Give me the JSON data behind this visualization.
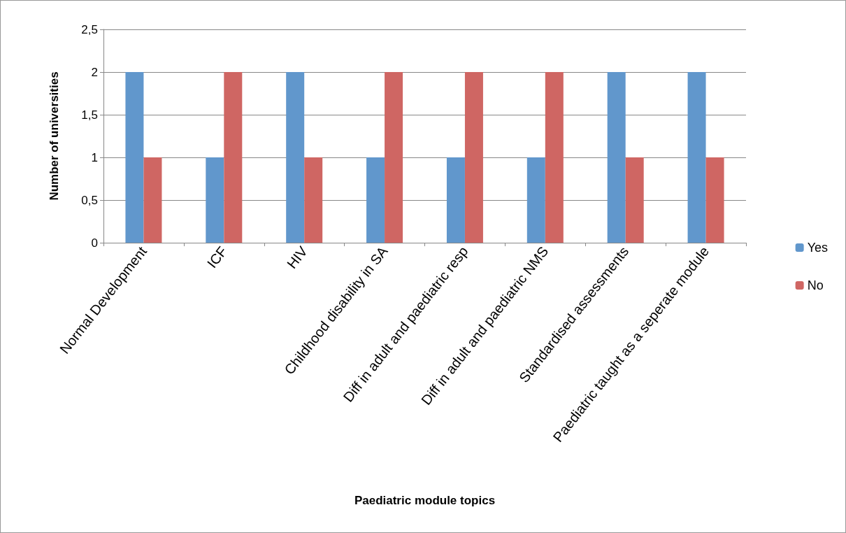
{
  "chart_data": {
    "type": "bar",
    "xlabel": "Paediatric module topics",
    "ylabel": "Number of universities",
    "categories": [
      "Normal Development",
      "ICF",
      "HIV",
      "Childhood disability in SA",
      "Diff in adult and paediatric resp",
      "Diff in adult and paediatric NMS",
      "Standardised assessments",
      "Paediatric taught as a seperate module"
    ],
    "series": [
      {
        "name": "Yes",
        "color": "#6197cc",
        "values": [
          2,
          1,
          2,
          1,
          1,
          1,
          2,
          2
        ]
      },
      {
        "name": "No",
        "color": "#cf6663",
        "values": [
          1,
          2,
          1,
          2,
          2,
          2,
          1,
          1
        ]
      }
    ],
    "ylim": [
      0,
      2.5
    ],
    "yticks": [
      0,
      {
        "value": 0.5,
        "label": "0,5"
      },
      1,
      {
        "value": 1.5,
        "label": "1,5"
      },
      2,
      {
        "value": 2.5,
        "label": "2,5"
      }
    ],
    "grid": "y",
    "legend": "right"
  }
}
